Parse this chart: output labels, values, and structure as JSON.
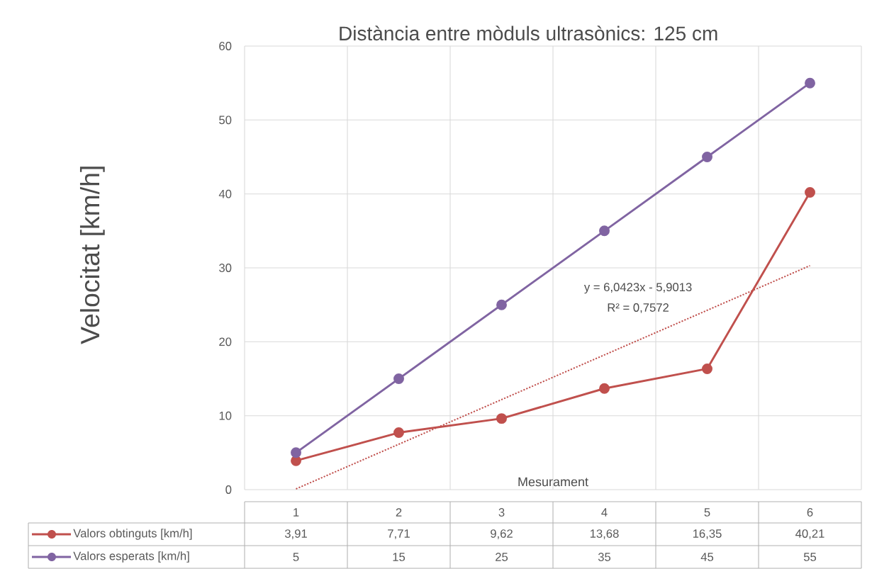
{
  "chart_data": {
    "type": "line",
    "title": "Distància entre mòduls ultrasònics:  125 cm",
    "xlabel": "Mesurament",
    "ylabel": "Velocitat [km/h]",
    "categories": [
      "1",
      "2",
      "3",
      "4",
      "5",
      "6"
    ],
    "series": [
      {
        "name": "Valors obtinguts [km/h]",
        "color": "#c0504d",
        "values": [
          3.91,
          7.71,
          9.62,
          13.68,
          16.35,
          40.21
        ],
        "value_labels": [
          "3,91",
          "7,71",
          "9,62",
          "13,68",
          "16,35",
          "40,21"
        ]
      },
      {
        "name": "Valors esperats [km/h]",
        "color": "#8064a2",
        "values": [
          5,
          15,
          25,
          35,
          45,
          55
        ],
        "value_labels": [
          "5",
          "15",
          "25",
          "35",
          "45",
          "55"
        ]
      },
      {
        "type": "line",
        "x": [
          "1",
          "6"
        ],
        "values": [
          0.1,
          30.3
        ],
        "color": "#c0504d",
        "line_style": "dotted",
        "marker": "none"
      }
    ],
    "annotations": [
      "y = 6,0423x - 5,9013",
      "R² = 0,7572"
    ],
    "ylim": [
      0,
      60
    ],
    "yticks": [
      0,
      10,
      20,
      30,
      40,
      50,
      60
    ],
    "grid": true,
    "legend": "bottom",
    "marker": "circle",
    "line_style": "solid"
  }
}
